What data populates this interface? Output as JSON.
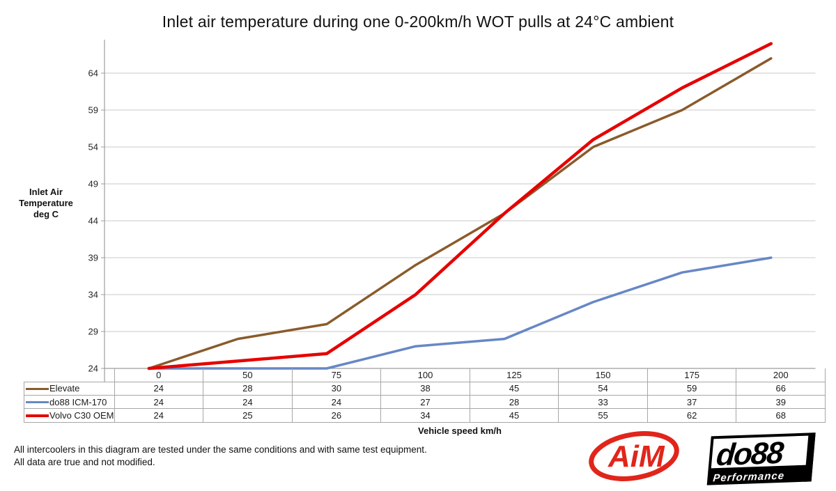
{
  "title": "Inlet air temperature during one 0-200km/h WOT pulls at 24°C ambient",
  "y_axis": {
    "caption_lines": [
      "Inlet Air",
      "Temperature",
      "deg C"
    ]
  },
  "x_axis": {
    "label": "Vehicle speed km/h"
  },
  "chart_data": {
    "type": "line",
    "title": "Inlet air temperature during one 0-200km/h WOT pulls at 24°C ambient",
    "categories": [
      "0",
      "50",
      "75",
      "100",
      "125",
      "150",
      "175",
      "200"
    ],
    "series": [
      {
        "name": "Elevate",
        "color": "#8a5b2b",
        "line_width": 3.5,
        "values": [
          24,
          28,
          30,
          38,
          45,
          54,
          59,
          66
        ]
      },
      {
        "name": "do88 ICM-170",
        "color": "#6787c5",
        "line_width": 3.5,
        "values": [
          24,
          24,
          24,
          27,
          28,
          33,
          37,
          39
        ]
      },
      {
        "name": "Volvo C30 OEM",
        "color": "#e60000",
        "line_width": 4.5,
        "values": [
          24,
          25,
          26,
          34,
          45,
          55,
          62,
          68
        ]
      }
    ],
    "xlabel": "Vehicle speed km/h",
    "ylabel": "Inlet Air Temperature deg C",
    "y_ticks": [
      24,
      29,
      34,
      39,
      44,
      49,
      54,
      59,
      64
    ],
    "ylim": [
      24,
      69
    ],
    "grid": true,
    "legend_position": "data-table-left"
  },
  "footnotes": [
    "All intercoolers in this diagram are tested under the same conditions and with same test equipment.",
    "All data are true and not modified."
  ],
  "logos": {
    "aim_text": "AiM",
    "do88_text": "do88",
    "do88_sub": "Performance",
    "aim_color": "#e1251b",
    "do88_color": "#000000"
  },
  "colors": {
    "grid": "#c9c9c9",
    "axis": "#9c9c9c",
    "table_border": "#a6a6a6",
    "text": "#262626"
  }
}
